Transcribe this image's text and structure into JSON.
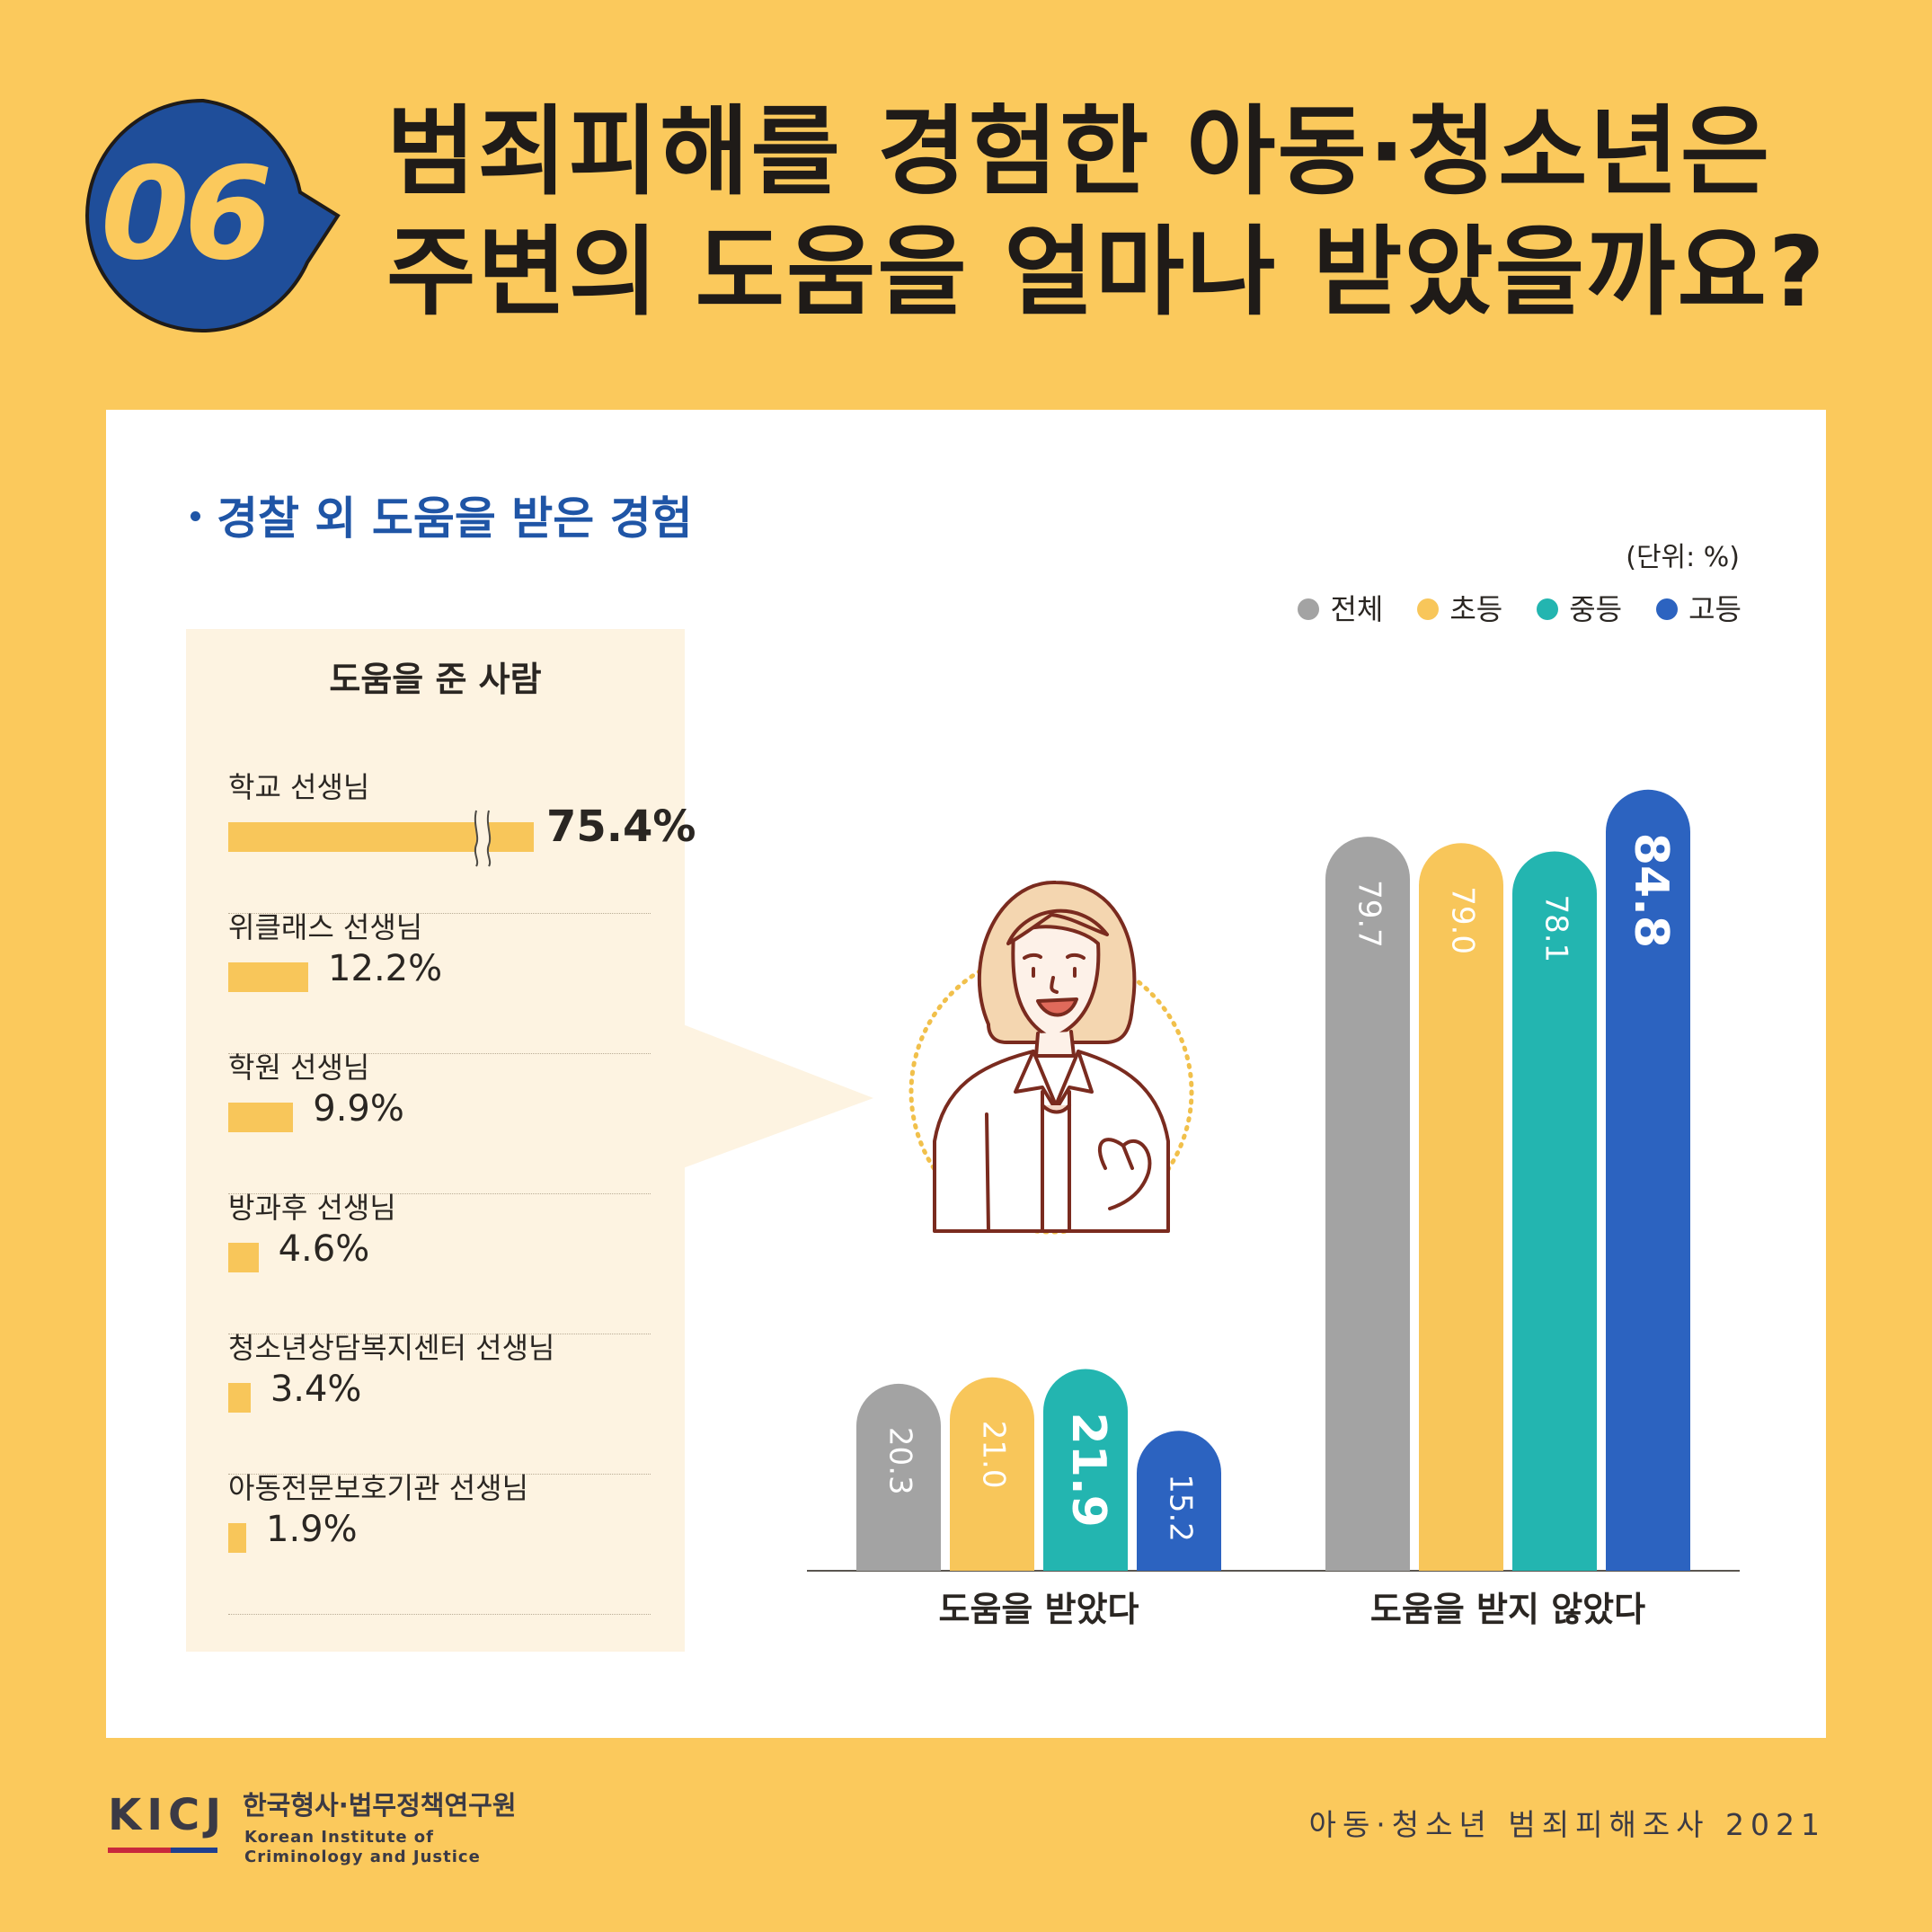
{
  "header": {
    "badge_number": "06",
    "title_line1": "범죄피해를 경험한 아동·청소년은",
    "title_line2": "주변의 도움을 얼마나 받았을까요?"
  },
  "section_title": "경찰 외 도움을 받은 경험",
  "helpers": {
    "title": "도움을 준 사람",
    "items": [
      {
        "label": "학교 선생님",
        "value": 75.4,
        "display": "75.4%"
      },
      {
        "label": "위클래스 선생님",
        "value": 12.2,
        "display": "12.2%"
      },
      {
        "label": "학원 선생님",
        "value": 9.9,
        "display": "9.9%"
      },
      {
        "label": "방과후 선생님",
        "value": 4.6,
        "display": "4.6%"
      },
      {
        "label": "청소년상담복지센터 선생님",
        "value": 3.4,
        "display": "3.4%"
      },
      {
        "label": "아동전문보호기관 선생님",
        "value": 1.9,
        "display": "1.9%"
      }
    ]
  },
  "legend": {
    "unit": "(단위: %)",
    "items": [
      {
        "label": "전체",
        "color": "#A3A3A3"
      },
      {
        "label": "초등",
        "color": "#F8C65A"
      },
      {
        "label": "중등",
        "color": "#23B5B0"
      },
      {
        "label": "고등",
        "color": "#2C63C0"
      }
    ]
  },
  "chart_data": [
    {
      "type": "bar",
      "title": "",
      "categories": [
        "도움을 받았다",
        "도움을 받지 않았다"
      ],
      "series": [
        {
          "name": "전체",
          "values": [
            20.3,
            79.7
          ]
        },
        {
          "name": "초등",
          "values": [
            21.0,
            79.0
          ]
        },
        {
          "name": "중등",
          "values": [
            21.9,
            78.1
          ]
        },
        {
          "name": "고등",
          "values": [
            15.2,
            84.8
          ]
        }
      ],
      "value_labels": [
        [
          "20.3",
          "79.7"
        ],
        [
          "21.0",
          "79.0"
        ],
        [
          "21.9",
          "78.1"
        ],
        [
          "15.2",
          "84.8"
        ]
      ],
      "highlighted": [
        [
          2,
          0
        ],
        [
          3,
          1
        ]
      ],
      "ylim": [
        0,
        100
      ],
      "grid": false,
      "legend_position": "top-right"
    },
    {
      "type": "bar",
      "orientation": "horizontal",
      "title": "도움을 준 사람",
      "categories": [
        "학교 선생님",
        "위클래스 선생님",
        "학원 선생님",
        "방과후 선생님",
        "청소년상담복지센터 선생님",
        "아동전문보호기관 선생님"
      ],
      "values": [
        75.4,
        12.2,
        9.9,
        4.6,
        3.4,
        1.9
      ],
      "axis_break": true
    }
  ],
  "footer": {
    "logo": "KICJ",
    "org_ko": "한국형사·법무정책연구원",
    "org_en": "Korean Institute of\nCriminology and Justice",
    "source": "아동·청소년 범죄피해조사 2021"
  }
}
